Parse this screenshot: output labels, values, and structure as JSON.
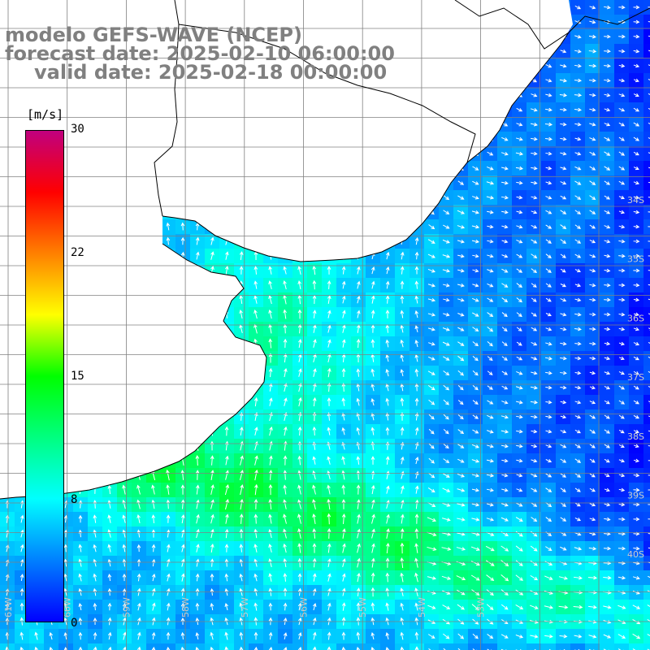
{
  "header": {
    "line1": "modelo GEFS-WAVE (NCEP)",
    "line2": "forecast date: 2025-02-10 06:00:00",
    "line3": "valid date: 2025-02-18 00:00:00"
  },
  "colorbar": {
    "unit": "[m/s]",
    "ticks": [
      "30",
      "22",
      "15",
      "8",
      "0"
    ],
    "colors": [
      "#0000ff",
      "#0080ff",
      "#00ffff",
      "#00ff80",
      "#00ff00",
      "#ffff00",
      "#ff8000",
      "#ff0000",
      "#c0007f"
    ]
  },
  "map": {
    "lat_labels": [
      "34S",
      "35S",
      "36S",
      "37S",
      "38S",
      "39S",
      "40S"
    ],
    "lon_labels": [
      "61W",
      "60W",
      "59W",
      "58W",
      "57W",
      "56W",
      "55W",
      "54W",
      "53W"
    ],
    "land_color": "#ffffff",
    "grid_color": "#808080",
    "arrow_color": "#ffffff"
  }
}
